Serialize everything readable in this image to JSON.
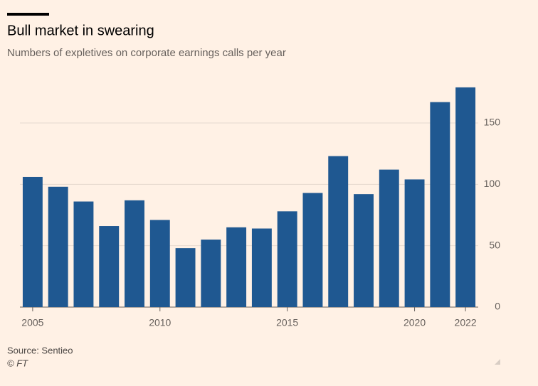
{
  "chart_data": {
    "type": "bar",
    "title": "Bull market in swearing",
    "subtitle": "Numbers of expletives on corporate earnings calls per year",
    "source": "Source: Sentieo",
    "credit": "© FT",
    "x": [
      2005,
      2006,
      2007,
      2008,
      2009,
      2010,
      2011,
      2012,
      2013,
      2014,
      2015,
      2016,
      2017,
      2018,
      2019,
      2020,
      2021,
      2022
    ],
    "values": [
      106,
      98,
      86,
      66,
      87,
      71,
      48,
      55,
      65,
      64,
      78,
      93,
      123,
      92,
      112,
      104,
      167,
      179
    ],
    "color": "#1f5891",
    "xlim": [
      2004.5,
      2022.5
    ],
    "xticks": [
      2005,
      2010,
      2015,
      2020,
      2022
    ],
    "ylim": [
      0,
      183
    ],
    "yticks": [
      0,
      50,
      100,
      150
    ],
    "grid": true
  }
}
